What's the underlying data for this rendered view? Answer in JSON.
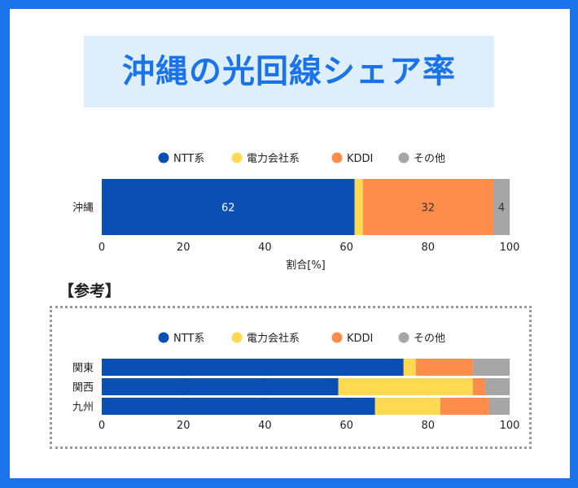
{
  "title": "沖縄の光回線シェア率",
  "reference_heading": "【参考】",
  "colors": {
    "ntt": "#0a4fb3",
    "power": "#ffd952",
    "kddi": "#fe8c4a",
    "other": "#a6a6a6",
    "frame": "#1a73e8"
  },
  "chart_data": [
    {
      "type": "bar",
      "orientation": "horizontal",
      "stacked": true,
      "categories": [
        "沖縄"
      ],
      "series": [
        {
          "name": "NTT系",
          "values": [
            62
          ]
        },
        {
          "name": "電力会社系",
          "values": [
            2
          ]
        },
        {
          "name": "KDDI",
          "values": [
            32
          ]
        },
        {
          "name": "その他",
          "values": [
            4
          ]
        }
      ],
      "data_labels": {
        "NTT系": [
          "62"
        ],
        "KDDI": [
          "32"
        ],
        "その他": [
          "4"
        ]
      },
      "xlabel": "割合[%]",
      "xlim": [
        0,
        100
      ],
      "xticks": [
        "0",
        "20",
        "40",
        "60",
        "80",
        "100"
      ],
      "legend": "top"
    },
    {
      "type": "bar",
      "orientation": "horizontal",
      "stacked": true,
      "categories": [
        "関東",
        "関西",
        "九州"
      ],
      "series": [
        {
          "name": "NTT系",
          "values": [
            74,
            58,
            67
          ]
        },
        {
          "name": "電力会社系",
          "values": [
            3,
            33,
            16
          ]
        },
        {
          "name": "KDDI",
          "values": [
            14,
            3,
            12
          ]
        },
        {
          "name": "その他",
          "values": [
            9,
            6,
            5
          ]
        }
      ],
      "xlim": [
        0,
        100
      ],
      "xticks": [
        "0",
        "20",
        "40",
        "60",
        "80",
        "100"
      ],
      "legend": "top"
    }
  ]
}
